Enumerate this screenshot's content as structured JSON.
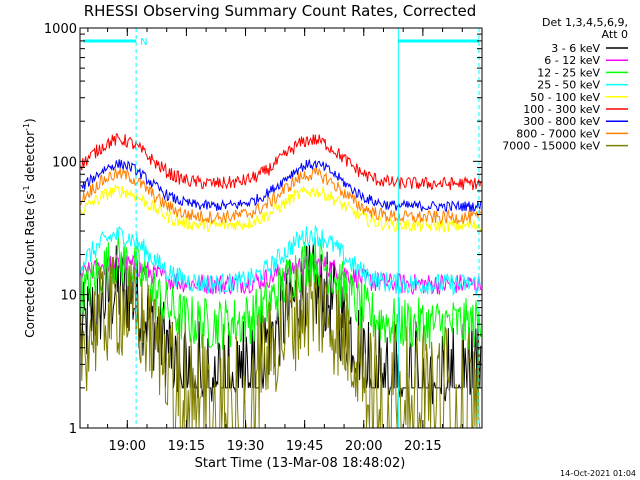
{
  "chart_data": {
    "type": "line",
    "title": "RHESSI Observing Summary Count Rates, Corrected",
    "xlabel": "Start Time (13-Mar-08 18:48:02)",
    "ylabel_main": "Corrected Count Rate (s",
    "ylabel_sup1": "-1",
    "ylabel_mid": " detector",
    "ylabel_sup2": "-1",
    "ylabel_end": ")",
    "ylog": true,
    "ylim": [
      1,
      1000
    ],
    "xlim_minutes": [
      48,
      150
    ],
    "x_ticks": [
      {
        "label": "19:00",
        "minute": 60
      },
      {
        "label": "19:15",
        "minute": 75
      },
      {
        "label": "19:30",
        "minute": 90
      },
      {
        "label": "19:45",
        "minute": 105
      },
      {
        "label": "20:00",
        "minute": 120
      },
      {
        "label": "20:15",
        "minute": 135
      }
    ],
    "y_ticks": [
      {
        "label": "1",
        "value": 1
      },
      {
        "label": "10",
        "value": 10
      },
      {
        "label": "100",
        "value": 100
      },
      {
        "label": "1000",
        "value": 1000
      }
    ],
    "night_flag_label": "N",
    "legend_header": [
      "Det 1,3,4,5,6,9,",
      "Att 0"
    ],
    "legend_position": "right",
    "series": [
      {
        "name": "3 - 6 keV",
        "color": "#000000",
        "base": 3.0,
        "peak": 11,
        "noise": 0.35,
        "floor": 2.0
      },
      {
        "name": "6 - 12 keV",
        "color": "#ff00ff",
        "base": 12,
        "peak": 17,
        "noise": 0.08
      },
      {
        "name": "12 - 25 keV",
        "color": "#00ff00",
        "base": 6.0,
        "peak": 18,
        "noise": 0.2
      },
      {
        "name": "25 - 50 keV",
        "color": "#00ffff",
        "base": 12,
        "peak": 28,
        "noise": 0.08
      },
      {
        "name": "50 - 100 keV",
        "color": "#ffff00",
        "base": 33,
        "peak": 60,
        "noise": 0.05
      },
      {
        "name": "100 - 300 keV",
        "color": "#ff0000",
        "base": 68,
        "peak": 145,
        "noise": 0.05
      },
      {
        "name": "300 - 800 keV",
        "color": "#0000ff",
        "base": 46,
        "peak": 95,
        "noise": 0.04
      },
      {
        "name": "800 - 7000 keV",
        "color": "#ff8000",
        "base": 38,
        "peak": 80,
        "noise": 0.05
      },
      {
        "name": "7000 - 15000 keV",
        "color": "#808000",
        "base": 2.5,
        "peak": 8,
        "noise": 0.4,
        "floor": 1.0
      }
    ],
    "peak_times_minutes": [
      58,
      107
    ],
    "night_intervals_minutes": [
      [
        48,
        63
      ],
      [
        128,
        150
      ]
    ],
    "footer_date": "14-Oct-2021 01:04"
  },
  "colors": {
    "axes": "#000000",
    "night_bar": "#00ffff",
    "background": "#ffffff"
  }
}
